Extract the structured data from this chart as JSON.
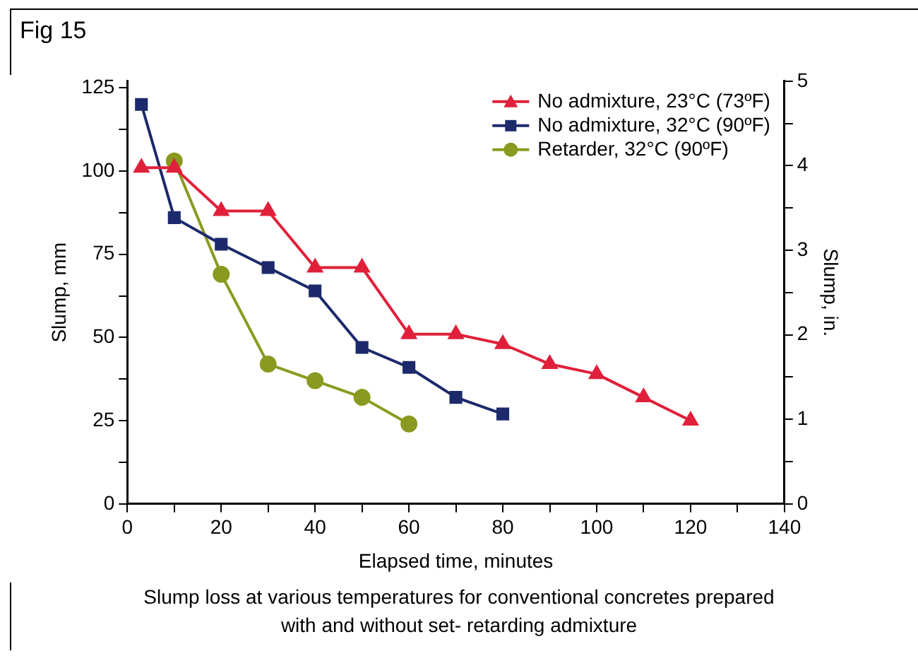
{
  "chart_data": {
    "type": "line",
    "title": "Fig 15",
    "xlabel": "Elapsed time, minutes",
    "ylabel": "Slump, mm",
    "y2label": "Slump, in.",
    "annotations": [
      "Slump loss at various temperatures for conventional concretes prepared with and without set- retarding admixture"
    ],
    "series": [
      {
        "name": "No admixture, 23°C (73ºF)",
        "color": "#e0203a",
        "marker": "triangle",
        "x": [
          3,
          10,
          20,
          30,
          40,
          50,
          60,
          70,
          80,
          90,
          100,
          110,
          120
        ],
        "values": [
          101,
          101,
          88,
          88,
          71,
          71,
          51,
          51,
          48,
          42,
          39,
          32,
          25
        ]
      },
      {
        "name": "No admixture, 32°C (90ºF)",
        "color": "#1c2a6b",
        "marker": "square",
        "x": [
          3,
          10,
          20,
          30,
          40,
          50,
          60,
          70,
          80
        ],
        "values": [
          120,
          86,
          78,
          71,
          64,
          47,
          41,
          32,
          27
        ]
      },
      {
        "name": "Retarder, 32°C (90ºF)",
        "color": "#8a9a20",
        "marker": "circle",
        "x": [
          10,
          20,
          30,
          40,
          50,
          60
        ],
        "values": [
          103,
          69,
          42,
          37,
          32,
          24
        ]
      }
    ],
    "xlim": [
      0,
      140
    ],
    "xticks": [
      0,
      {
        "value": 10,
        "label": null
      },
      20,
      {
        "value": 30,
        "label": null
      },
      40,
      {
        "value": 50,
        "label": null
      },
      60,
      {
        "value": 70,
        "label": null
      },
      80,
      {
        "value": 90,
        "label": null
      },
      100,
      {
        "value": 110,
        "label": null
      },
      120,
      {
        "value": 130,
        "label": null
      },
      140
    ],
    "ylim": [
      0,
      127
    ],
    "yticks": [
      0,
      {
        "value": 12.5,
        "label": null
      },
      25,
      {
        "value": 37.5,
        "label": null
      },
      50,
      {
        "value": 62.5,
        "label": null
      },
      75,
      {
        "value": 87.5,
        "label": null
      },
      100,
      {
        "value": 112.5,
        "label": null
      },
      125
    ],
    "y2lim": [
      0,
      5
    ],
    "y2ticks": [
      0,
      {
        "value": 0.5,
        "label": null
      },
      1,
      {
        "value": 1.5,
        "label": null
      },
      2,
      {
        "value": 2.5,
        "label": null
      },
      3,
      {
        "value": 3.5,
        "label": null
      },
      4,
      {
        "value": 4.5,
        "label": null
      },
      5
    ],
    "grid": false,
    "legend": "top right",
    "line_style": "solid"
  }
}
